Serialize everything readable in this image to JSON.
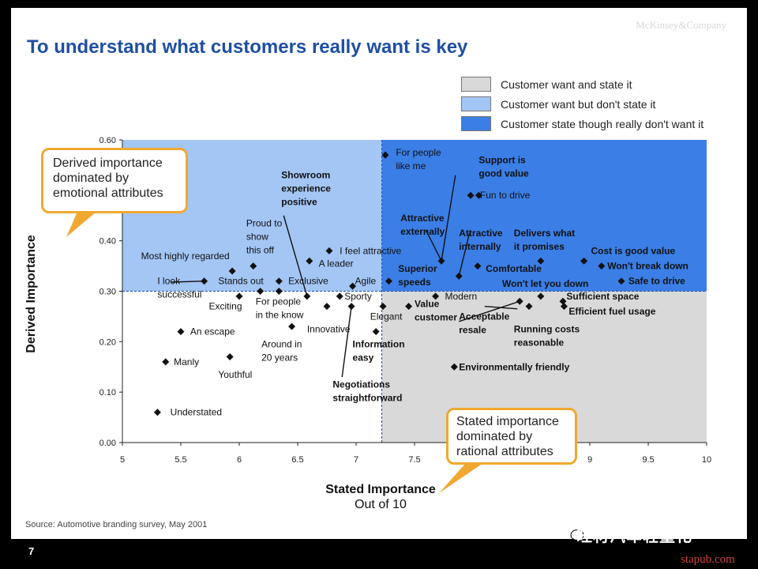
{
  "brand": "McKinsey&Company",
  "title": "To understand what customers really want is key",
  "legend": [
    {
      "label": "Customer want and state it",
      "color": "#d9d9d9"
    },
    {
      "label": "Customer want but don't state it",
      "color": "#a3c6f5"
    },
    {
      "label": "Customer state though really don't want it",
      "color": "#3b7ee6"
    }
  ],
  "callouts": {
    "left": "Derived importance dominated by emotional attributes",
    "right": "Stated importance dominated by rational attributes"
  },
  "chart_data": {
    "type": "scatter",
    "xlabel": "Stated Importance",
    "xlabel_sub": "Out of 10",
    "ylabel": "Derived Importance",
    "xlim": [
      5,
      10
    ],
    "ylim": [
      0,
      0.6
    ],
    "xticks": [
      "5",
      "5.5",
      "6",
      "6.5",
      "7",
      "7.5",
      "8",
      "8.5",
      "9",
      "9.5",
      "10"
    ],
    "yticks": [
      "0.00",
      "0.10",
      "0.20",
      "0.30",
      "0.40",
      "0.60"
    ],
    "divider": {
      "x": 7.22,
      "y": 0.3
    },
    "points": [
      {
        "x": 5.3,
        "y": 0.06,
        "label": "Understated"
      },
      {
        "x": 5.37,
        "y": 0.16,
        "label": "Manly"
      },
      {
        "x": 5.5,
        "y": 0.22,
        "label": "An escape"
      },
      {
        "x": 5.7,
        "y": 0.32,
        "label": "I look successful"
      },
      {
        "x": 5.94,
        "y": 0.34,
        "label": "Most highly regarded"
      },
      {
        "x": 5.92,
        "y": 0.17,
        "label": "Youthful"
      },
      {
        "x": 6.0,
        "y": 0.29,
        "label": "Exciting"
      },
      {
        "x": 6.12,
        "y": 0.35,
        "label": "Proud to show this off"
      },
      {
        "x": 6.18,
        "y": 0.3,
        "label": "Stands out"
      },
      {
        "x": 6.34,
        "y": 0.32,
        "label": "Exclusive"
      },
      {
        "x": 6.34,
        "y": 0.3,
        "label": "For people in the know"
      },
      {
        "x": 6.45,
        "y": 0.23,
        "label": "Around in 20 years"
      },
      {
        "x": 6.58,
        "y": 0.29,
        "label": "Showroom experience positive"
      },
      {
        "x": 6.6,
        "y": 0.36,
        "label": "A leader"
      },
      {
        "x": 6.75,
        "y": 0.27,
        "label": "Innovative"
      },
      {
        "x": 6.77,
        "y": 0.38,
        "label": "I feel attractive"
      },
      {
        "x": 6.86,
        "y": 0.29,
        "label": "Sporty"
      },
      {
        "x": 6.96,
        "y": 0.27,
        "label": "Negotiations straightforward"
      },
      {
        "x": 6.97,
        "y": 0.31,
        "label": "Agile"
      },
      {
        "x": 7.17,
        "y": 0.22,
        "label": "Information easy"
      },
      {
        "x": 7.23,
        "y": 0.27,
        "label": "Elegant"
      },
      {
        "x": 7.25,
        "y": 0.57,
        "label": "For people like me"
      },
      {
        "x": 7.28,
        "y": 0.32,
        "label": "Superior speeds"
      },
      {
        "x": 7.45,
        "y": 0.27,
        "label": "Value"
      },
      {
        "x": 7.68,
        "y": 0.29,
        "label": "Modern"
      },
      {
        "x": 7.73,
        "y": 0.36,
        "label": "Attractive externally"
      },
      {
        "x": 7.84,
        "y": 0.15,
        "label": "Environmentally friendly"
      },
      {
        "x": 7.88,
        "y": 0.33,
        "label": "Attractive internally"
      },
      {
        "x": 7.98,
        "y": 0.49,
        "label": "Fun to drive"
      },
      {
        "x": 8.04,
        "y": 0.35,
        "label": "Comfortable"
      },
      {
        "x": 8.05,
        "y": 0.49,
        "label": "Support is good value"
      },
      {
        "x": 8.4,
        "y": 0.28,
        "label": "Acceptable resale"
      },
      {
        "x": 8.48,
        "y": 0.27,
        "label": "Running costs reasonable"
      },
      {
        "x": 8.58,
        "y": 0.36,
        "label": "Delivers what it promises"
      },
      {
        "x": 8.58,
        "y": 0.29,
        "label": "Won't let you down"
      },
      {
        "x": 8.77,
        "y": 0.28,
        "label": "Sufficient space"
      },
      {
        "x": 8.78,
        "y": 0.27,
        "label": "Efficient fuel usage"
      },
      {
        "x": 8.95,
        "y": 0.36,
        "label": "Cost is good value"
      },
      {
        "x": 9.1,
        "y": 0.35,
        "label": "Won't break down"
      },
      {
        "x": 9.27,
        "y": 0.32,
        "label": "Safe to drive"
      }
    ],
    "labels": [
      {
        "lines": [
          "Understated"
        ],
        "at": [
          5.41,
          0.06
        ],
        "bold": false
      },
      {
        "lines": [
          "Manly"
        ],
        "at": [
          5.44,
          0.16
        ],
        "bold": false
      },
      {
        "lines": [
          "An escape"
        ],
        "at": [
          5.58,
          0.22
        ],
        "bold": false
      },
      {
        "lines": [
          "I look",
          "successful"
        ],
        "at": [
          5.3,
          0.32
        ],
        "bold": false
      },
      {
        "lines": [
          "Most highly regarded"
        ],
        "at": [
          5.16,
          0.37
        ],
        "bold": false
      },
      {
        "lines": [
          "Youthful"
        ],
        "at": [
          5.82,
          0.135
        ],
        "bold": false
      },
      {
        "lines": [
          "Exciting"
        ],
        "at": [
          5.74,
          0.27
        ],
        "bold": false
      },
      {
        "lines": [
          "Proud to",
          "show",
          "this off"
        ],
        "at": [
          6.06,
          0.435
        ],
        "bold": false
      },
      {
        "lines": [
          "Stands out"
        ],
        "at": [
          5.82,
          0.32
        ],
        "bold": false
      },
      {
        "lines": [
          "Exclusive"
        ],
        "at": [
          6.42,
          0.32
        ],
        "bold": false
      },
      {
        "lines": [
          "For people",
          "in the know"
        ],
        "at": [
          6.14,
          0.28
        ],
        "bold": false
      },
      {
        "lines": [
          "Around in",
          "20 years"
        ],
        "at": [
          6.19,
          0.195
        ],
        "bold": false
      },
      {
        "lines": [
          "Showroom",
          "experience",
          "positive"
        ],
        "at": [
          6.36,
          0.53
        ],
        "bold": true
      },
      {
        "lines": [
          "A leader"
        ],
        "at": [
          6.68,
          0.355
        ],
        "bold": false
      },
      {
        "lines": [
          "Innovative"
        ],
        "at": [
          6.58,
          0.225
        ],
        "bold": false
      },
      {
        "lines": [
          "I feel attractive"
        ],
        "at": [
          6.86,
          0.38
        ],
        "bold": false
      },
      {
        "lines": [
          "Sporty"
        ],
        "at": [
          6.9,
          0.29
        ],
        "bold": false
      },
      {
        "lines": [
          "Negotiations",
          "straightforward"
        ],
        "at": [
          6.8,
          0.115
        ],
        "bold": true
      },
      {
        "lines": [
          "Agile"
        ],
        "at": [
          6.99,
          0.32
        ],
        "bold": false
      },
      {
        "lines": [
          "Information",
          "easy"
        ],
        "at": [
          6.97,
          0.195
        ],
        "bold": true
      },
      {
        "lines": [
          "Elegant"
        ],
        "at": [
          7.12,
          0.25
        ],
        "bold": false
      },
      {
        "lines": [
          "For people",
          "like me"
        ],
        "at": [
          7.34,
          0.575
        ],
        "bold": false
      },
      {
        "lines": [
          "Superior",
          "speeds"
        ],
        "at": [
          7.36,
          0.345
        ],
        "bold": true
      },
      {
        "lines": [
          "Value",
          "customer"
        ],
        "at": [
          7.5,
          0.275
        ],
        "bold": true
      },
      {
        "lines": [
          "Modern"
        ],
        "at": [
          7.76,
          0.29
        ],
        "bold": false
      },
      {
        "lines": [
          "Attractive",
          "externally"
        ],
        "at": [
          7.38,
          0.445
        ],
        "bold": true
      },
      {
        "lines": [
          "Environmentally friendly"
        ],
        "at": [
          7.88,
          0.15
        ],
        "bold": true
      },
      {
        "lines": [
          "Attractive",
          "internally"
        ],
        "at": [
          7.88,
          0.415
        ],
        "bold": true
      },
      {
        "lines": [
          "Fun to drive"
        ],
        "at": [
          8.06,
          0.49
        ],
        "bold": false
      },
      {
        "lines": [
          "Comfortable"
        ],
        "at": [
          8.11,
          0.345
        ],
        "bold": true
      },
      {
        "lines": [
          "Support is",
          "good value"
        ],
        "at": [
          8.05,
          0.56
        ],
        "bold": true
      },
      {
        "lines": [
          "Acceptable",
          "resale"
        ],
        "at": [
          7.88,
          0.25
        ],
        "bold": true
      },
      {
        "lines": [
          "Running costs",
          "reasonable"
        ],
        "at": [
          8.35,
          0.225
        ],
        "bold": true
      },
      {
        "lines": [
          "Delivers what",
          "it promises"
        ],
        "at": [
          8.35,
          0.415
        ],
        "bold": true
      },
      {
        "lines": [
          "Won't let you down"
        ],
        "at": [
          8.25,
          0.315
        ],
        "bold": true
      },
      {
        "lines": [
          "Sufficient space"
        ],
        "at": [
          8.8,
          0.29
        ],
        "bold": true
      },
      {
        "lines": [
          "Efficient fuel usage"
        ],
        "at": [
          8.82,
          0.26
        ],
        "bold": true
      },
      {
        "lines": [
          "Cost is good value"
        ],
        "at": [
          9.01,
          0.38
        ],
        "bold": true
      },
      {
        "lines": [
          "Won't break down"
        ],
        "at": [
          9.15,
          0.35
        ],
        "bold": true
      },
      {
        "lines": [
          "Safe to drive"
        ],
        "at": [
          9.33,
          0.32
        ],
        "bold": true
      }
    ],
    "leaders": [
      {
        "from": [
          5.42,
          0.318
        ],
        "to": [
          5.7,
          0.32
        ]
      },
      {
        "from": [
          6.38,
          0.45
        ],
        "to": [
          6.58,
          0.29
        ]
      },
      {
        "from": [
          7.85,
          0.53
        ],
        "to": [
          7.73,
          0.36
        ]
      },
      {
        "from": [
          7.6,
          0.42
        ],
        "to": [
          7.73,
          0.36
        ]
      },
      {
        "from": [
          7.97,
          0.415
        ],
        "to": [
          7.88,
          0.33
        ]
      },
      {
        "from": [
          6.88,
          0.13
        ],
        "to": [
          6.96,
          0.27
        ]
      },
      {
        "from": [
          8.38,
          0.265
        ],
        "to": [
          8.1,
          0.27
        ]
      },
      {
        "from": [
          7.88,
          0.24
        ],
        "to": [
          8.4,
          0.28
        ]
      }
    ]
  },
  "source": "Source: Automotive branding survey, May 2001",
  "page_number": "7",
  "watermark": "旺材汽车轻量化",
  "watermark_url": "stapub.com"
}
